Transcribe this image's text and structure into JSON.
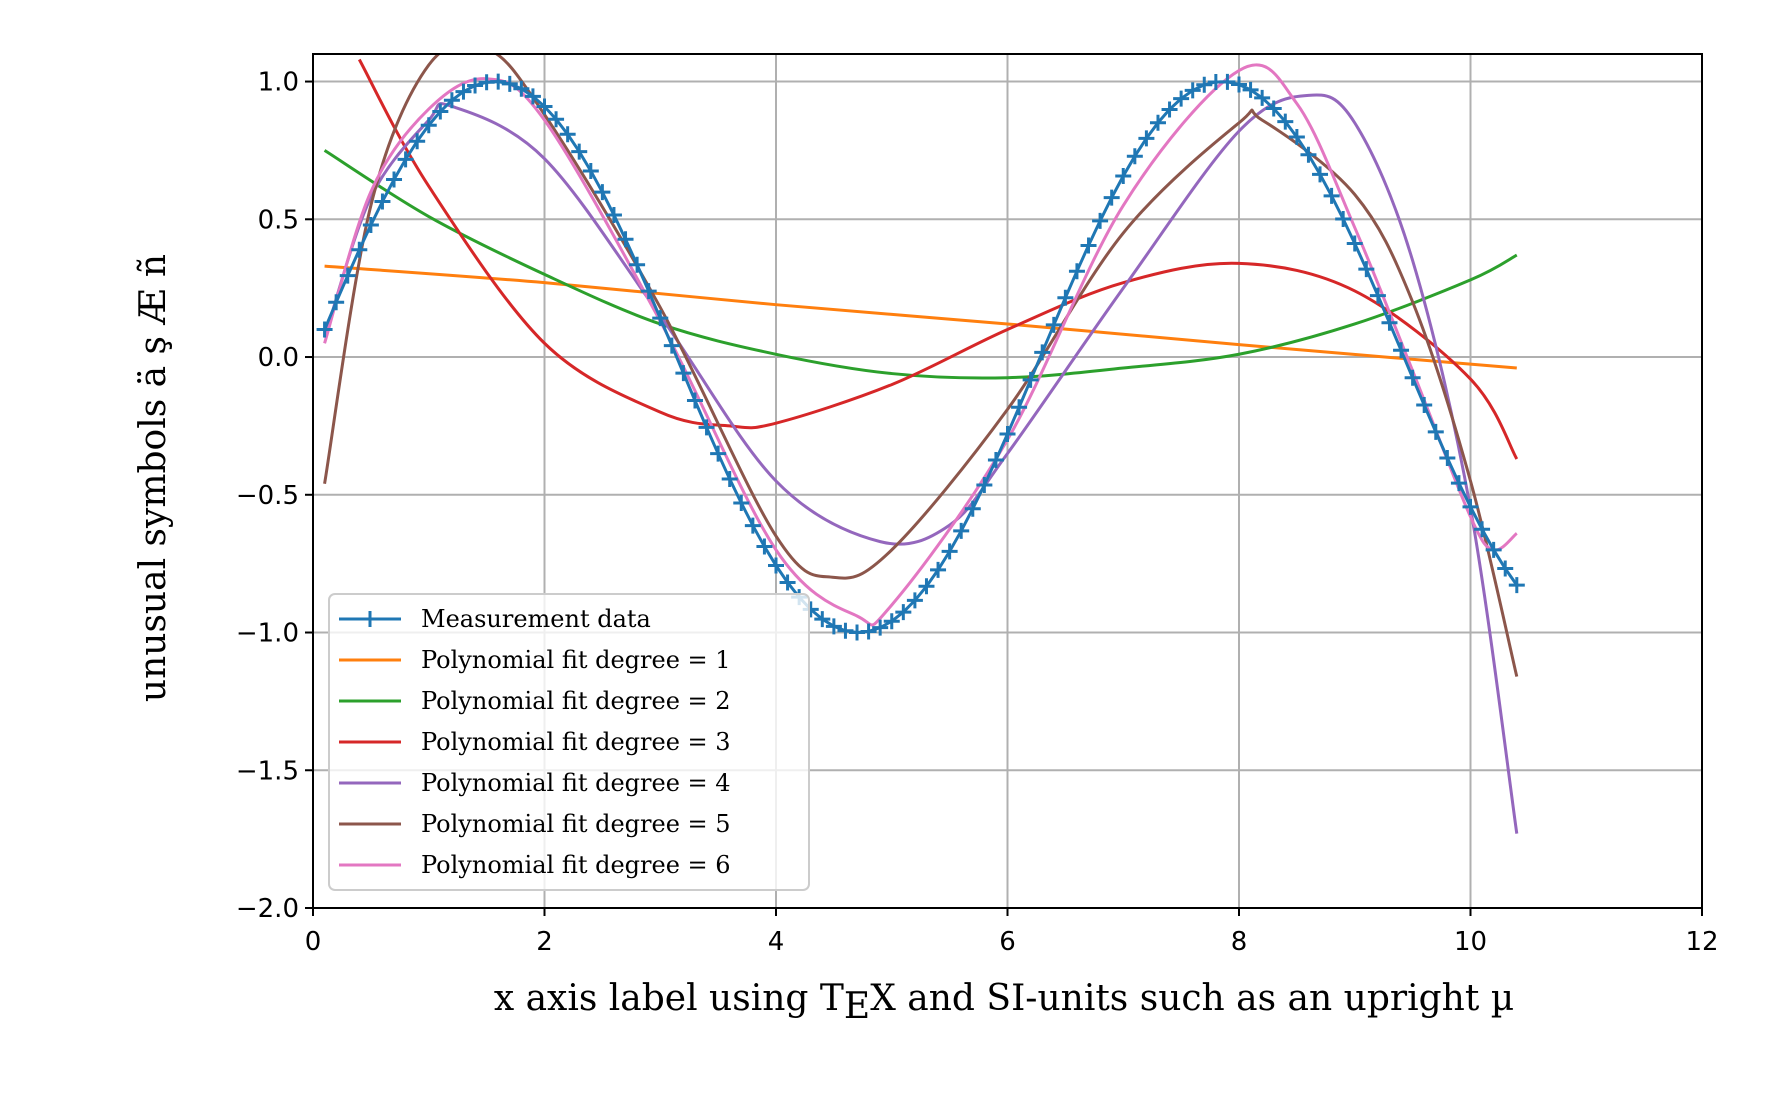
{
  "chart_data": {
    "type": "line",
    "title": "",
    "xlabel": "x axis label using TEX and SI-units such as an upright µ",
    "xlabel_parts": {
      "before": "x axis label using T",
      "lowered": "E",
      "after": "X and SI-units such as an upright µ"
    },
    "ylabel": "unusual symbols ä ş Æ ñ",
    "xlim": [
      0,
      12
    ],
    "ylim": [
      -2.0,
      1.1
    ],
    "xticks": [
      0,
      2,
      4,
      6,
      8,
      10,
      12
    ],
    "xtick_labels": [
      "0",
      "2",
      "4",
      "6",
      "8",
      "10",
      "12"
    ],
    "yticks": [
      -2.0,
      -1.5,
      -1.0,
      -0.5,
      0.0,
      0.5,
      1.0
    ],
    "ytick_labels": [
      "−2.0",
      "−1.5",
      "−1.0",
      "−0.5",
      "0.0",
      "0.5",
      "1.0"
    ],
    "grid": true,
    "legend_position": "lower-left",
    "measurement": {
      "name": "Measurement data",
      "color": "#1f77b4",
      "marker": "+",
      "function": "sin",
      "x_start": 0.1,
      "x_end": 10.4,
      "x_step": 0.1
    },
    "series": [
      {
        "name": "Polynomial fit degree = 1",
        "color": "#ff7f0e",
        "x_range": [
          0.1,
          10.4
        ],
        "points": [
          [
            0.1,
            0.33
          ],
          [
            2,
            0.27
          ],
          [
            4,
            0.19
          ],
          [
            6,
            0.12
          ],
          [
            8,
            0.045
          ],
          [
            10.4,
            -0.04
          ]
        ]
      },
      {
        "name": "Polynomial fit degree = 2",
        "color": "#2ca02c",
        "x_range": [
          0.1,
          10.4
        ],
        "points": [
          [
            0.1,
            0.75
          ],
          [
            1,
            0.51
          ],
          [
            2,
            0.3
          ],
          [
            3,
            0.12
          ],
          [
            4,
            0.01
          ],
          [
            5,
            -0.06
          ],
          [
            6,
            -0.075
          ],
          [
            7,
            -0.04
          ],
          [
            8,
            0.01
          ],
          [
            9,
            0.12
          ],
          [
            10,
            0.28
          ],
          [
            10.4,
            0.37
          ]
        ]
      },
      {
        "name": "Polynomial fit degree = 3",
        "color": "#d62728",
        "x_range": [
          0.1,
          10.4
        ],
        "points": [
          [
            0.4,
            1.08
          ],
          [
            1,
            0.62
          ],
          [
            2,
            0.05
          ],
          [
            3,
            -0.2
          ],
          [
            3.6,
            -0.25
          ],
          [
            4,
            -0.24
          ],
          [
            5,
            -0.1
          ],
          [
            6,
            0.1
          ],
          [
            7,
            0.27
          ],
          [
            8,
            0.34
          ],
          [
            9,
            0.24
          ],
          [
            10,
            -0.08
          ],
          [
            10.4,
            -0.37
          ]
        ]
      },
      {
        "name": "Polynomial fit degree = 4",
        "color": "#9467bd",
        "x_range": [
          0.1,
          10.4
        ],
        "points": [
          [
            0.1,
            0.07
          ],
          [
            0.5,
            0.58
          ],
          [
            1,
            0.86
          ],
          [
            1.2,
            0.91
          ],
          [
            2,
            0.72
          ],
          [
            3,
            0.15
          ],
          [
            4,
            -0.45
          ],
          [
            4.9,
            -0.67
          ],
          [
            5.5,
            -0.61
          ],
          [
            6,
            -0.35
          ],
          [
            7,
            0.25
          ],
          [
            8,
            0.82
          ],
          [
            8.6,
            0.95
          ],
          [
            9,
            0.85
          ],
          [
            9.5,
            0.35
          ],
          [
            10,
            -0.55
          ],
          [
            10.4,
            -1.73
          ]
        ]
      },
      {
        "name": "Polynomial fit degree = 5",
        "color": "#8c564b",
        "x_range": [
          0.1,
          10.4
        ],
        "points": [
          [
            0.1,
            -0.46
          ],
          [
            0.5,
            0.55
          ],
          [
            1,
            1.06
          ],
          [
            1.5,
            1.12
          ],
          [
            2,
            0.88
          ],
          [
            3,
            0.18
          ],
          [
            4,
            -0.65
          ],
          [
            4.5,
            -0.8
          ],
          [
            5,
            -0.7
          ],
          [
            6,
            -0.19
          ],
          [
            7,
            0.45
          ],
          [
            8,
            0.85
          ],
          [
            8.2,
            0.86
          ],
          [
            9,
            0.59
          ],
          [
            9.5,
            0.2
          ],
          [
            10,
            -0.45
          ],
          [
            10.4,
            -1.16
          ]
        ]
      },
      {
        "name": "Polynomial fit degree = 6",
        "color": "#e377c2",
        "x_range": [
          0.1,
          10.4
        ],
        "points": [
          [
            0.1,
            0.05
          ],
          [
            0.5,
            0.6
          ],
          [
            1,
            0.9
          ],
          [
            1.5,
            1.01
          ],
          [
            2,
            0.86
          ],
          [
            3,
            0.13
          ],
          [
            4,
            -0.7
          ],
          [
            4.7,
            -0.94
          ],
          [
            5,
            -0.9
          ],
          [
            6,
            -0.3
          ],
          [
            7,
            0.55
          ],
          [
            8,
            1.04
          ],
          [
            8.5,
            0.92
          ],
          [
            9,
            0.47
          ],
          [
            9.5,
            -0.05
          ],
          [
            10,
            -0.58
          ],
          [
            10.2,
            -0.7
          ],
          [
            10.4,
            -0.64
          ]
        ]
      }
    ]
  }
}
